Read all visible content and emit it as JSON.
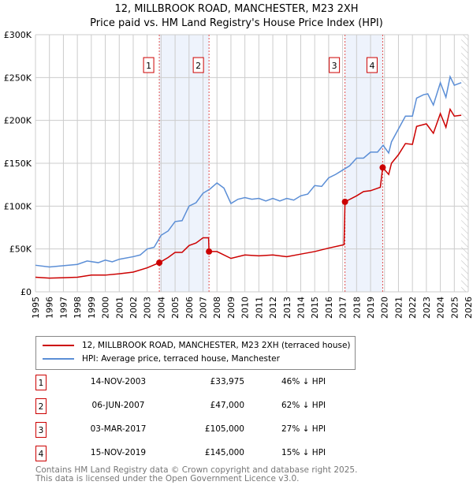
{
  "title": "12, MILLBROOK ROAD, MANCHESTER, M23 2XH",
  "subtitle": "Price paid vs. HM Land Registry's House Price Index (HPI)",
  "colors": {
    "property": "#cc0000",
    "hpi": "#5b8ed6",
    "shade": "#eef3fc",
    "grid": "#cccccc"
  },
  "legend": [
    {
      "label": "12, MILLBROOK ROAD, MANCHESTER, M23 2XH (terraced house)",
      "color": "#cc0000"
    },
    {
      "label": "HPI: Average price, terraced house, Manchester",
      "color": "#5b8ed6"
    }
  ],
  "sales": [
    {
      "num": "1",
      "date": "14-NOV-2003",
      "price": "£33,975",
      "hpi": "46% ↓ HPI",
      "x": 2003.87,
      "y": 33975
    },
    {
      "num": "2",
      "date": "06-JUN-2007",
      "price": "£47,000",
      "hpi": "62% ↓ HPI",
      "x": 2007.43,
      "y": 47000
    },
    {
      "num": "3",
      "date": "03-MAR-2017",
      "price": "£105,000",
      "hpi": "27% ↓ HPI",
      "x": 2017.17,
      "y": 105000
    },
    {
      "num": "4",
      "date": "15-NOV-2019",
      "price": "£145,000",
      "hpi": "15% ↓ HPI",
      "x": 2019.87,
      "y": 145000
    }
  ],
  "footer": [
    "Contains HM Land Registry data © Crown copyright and database right 2025.",
    "This data is licensed under the Open Government Licence v3.0."
  ],
  "chart_data": {
    "type": "line",
    "xlim": [
      1995,
      2026
    ],
    "ylim": [
      0,
      300000
    ],
    "xticks": [
      "1995",
      "1996",
      "1997",
      "1998",
      "1999",
      "2000",
      "2001",
      "2002",
      "2003",
      "2004",
      "2005",
      "2006",
      "2007",
      "2008",
      "2009",
      "2010",
      "2011",
      "2012",
      "2013",
      "2014",
      "2015",
      "2016",
      "2017",
      "2018",
      "2019",
      "2020",
      "2021",
      "2022",
      "2023",
      "2024",
      "2025",
      "2026"
    ],
    "yticks": [
      {
        "v": 0,
        "l": "£0"
      },
      {
        "v": 50000,
        "l": "£50K"
      },
      {
        "v": 100000,
        "l": "£100K"
      },
      {
        "v": 150000,
        "l": "£150K"
      },
      {
        "v": 200000,
        "l": "£200K"
      },
      {
        "v": 250000,
        "l": "£250K"
      },
      {
        "v": 300000,
        "l": "£300K"
      }
    ],
    "shaded": [
      [
        2003.87,
        2007.43
      ],
      [
        2017.17,
        2019.87
      ]
    ],
    "forecast_from": 2025.5,
    "series": [
      {
        "name": "HPI",
        "color": "#5b8ed6",
        "points": [
          [
            1995,
            31
          ],
          [
            1996,
            29
          ],
          [
            1997,
            30.5
          ],
          [
            1998,
            32
          ],
          [
            1998.7,
            36
          ],
          [
            1999.5,
            34
          ],
          [
            2000,
            37
          ],
          [
            2000.5,
            35
          ],
          [
            2001,
            38
          ],
          [
            2002,
            41
          ],
          [
            2002.5,
            43
          ],
          [
            2003,
            50
          ],
          [
            2003.5,
            52
          ],
          [
            2004,
            66
          ],
          [
            2004.5,
            71
          ],
          [
            2005,
            82
          ],
          [
            2005.5,
            83
          ],
          [
            2006,
            100
          ],
          [
            2006.5,
            104
          ],
          [
            2007,
            115
          ],
          [
            2007.5,
            120
          ],
          [
            2008,
            127
          ],
          [
            2008.5,
            121
          ],
          [
            2009,
            103
          ],
          [
            2009.5,
            108
          ],
          [
            2010,
            110
          ],
          [
            2010.5,
            108
          ],
          [
            2011,
            109
          ],
          [
            2011.5,
            106
          ],
          [
            2012,
            109
          ],
          [
            2012.5,
            106
          ],
          [
            2013,
            109
          ],
          [
            2013.5,
            107
          ],
          [
            2014,
            112
          ],
          [
            2014.5,
            114
          ],
          [
            2015,
            124
          ],
          [
            2015.5,
            123
          ],
          [
            2016,
            133
          ],
          [
            2016.5,
            137
          ],
          [
            2017,
            142
          ],
          [
            2017.5,
            147
          ],
          [
            2018,
            156
          ],
          [
            2018.5,
            156
          ],
          [
            2019,
            163
          ],
          [
            2019.5,
            163
          ],
          [
            2019.9,
            171
          ],
          [
            2020.3,
            162
          ],
          [
            2020.5,
            175
          ],
          [
            2021,
            190
          ],
          [
            2021.5,
            205
          ],
          [
            2022,
            205
          ],
          [
            2022.3,
            226
          ],
          [
            2022.8,
            230
          ],
          [
            2023.1,
            231
          ],
          [
            2023.5,
            218
          ],
          [
            2024,
            244
          ],
          [
            2024.4,
            227
          ],
          [
            2024.7,
            251
          ],
          [
            2025,
            241
          ],
          [
            2025.5,
            244
          ]
        ]
      },
      {
        "name": "Property",
        "color": "#cc0000",
        "points": [
          [
            1995,
            17
          ],
          [
            1996,
            16
          ],
          [
            1997,
            16.5
          ],
          [
            1998,
            17
          ],
          [
            1999,
            19.5
          ],
          [
            2000,
            19.5
          ],
          [
            2001,
            21
          ],
          [
            2002,
            23
          ],
          [
            2003,
            28
          ],
          [
            2003.87,
            34
          ],
          [
            2004.5,
            40
          ],
          [
            2005,
            46
          ],
          [
            2005.5,
            46
          ],
          [
            2006,
            54
          ],
          [
            2006.5,
            57
          ],
          [
            2007,
            63
          ],
          [
            2007.4,
            63
          ],
          [
            2007.43,
            47
          ],
          [
            2008,
            47
          ],
          [
            2009,
            39
          ],
          [
            2010,
            43
          ],
          [
            2011,
            42
          ],
          [
            2012,
            43
          ],
          [
            2013,
            41
          ],
          [
            2014,
            44
          ],
          [
            2015,
            47
          ],
          [
            2016,
            51
          ],
          [
            2017.1,
            55
          ],
          [
            2017.17,
            105
          ],
          [
            2018,
            112
          ],
          [
            2018.5,
            117
          ],
          [
            2019,
            118
          ],
          [
            2019.7,
            122
          ],
          [
            2019.87,
            145
          ],
          [
            2020.3,
            137
          ],
          [
            2020.5,
            150
          ],
          [
            2021,
            160
          ],
          [
            2021.5,
            173
          ],
          [
            2022,
            172
          ],
          [
            2022.3,
            193
          ],
          [
            2023,
            196
          ],
          [
            2023.5,
            185
          ],
          [
            2024,
            208
          ],
          [
            2024.4,
            192
          ],
          [
            2024.7,
            213
          ],
          [
            2025,
            205
          ],
          [
            2025.5,
            206
          ]
        ]
      }
    ],
    "units_note": "series y values in £ thousands"
  }
}
